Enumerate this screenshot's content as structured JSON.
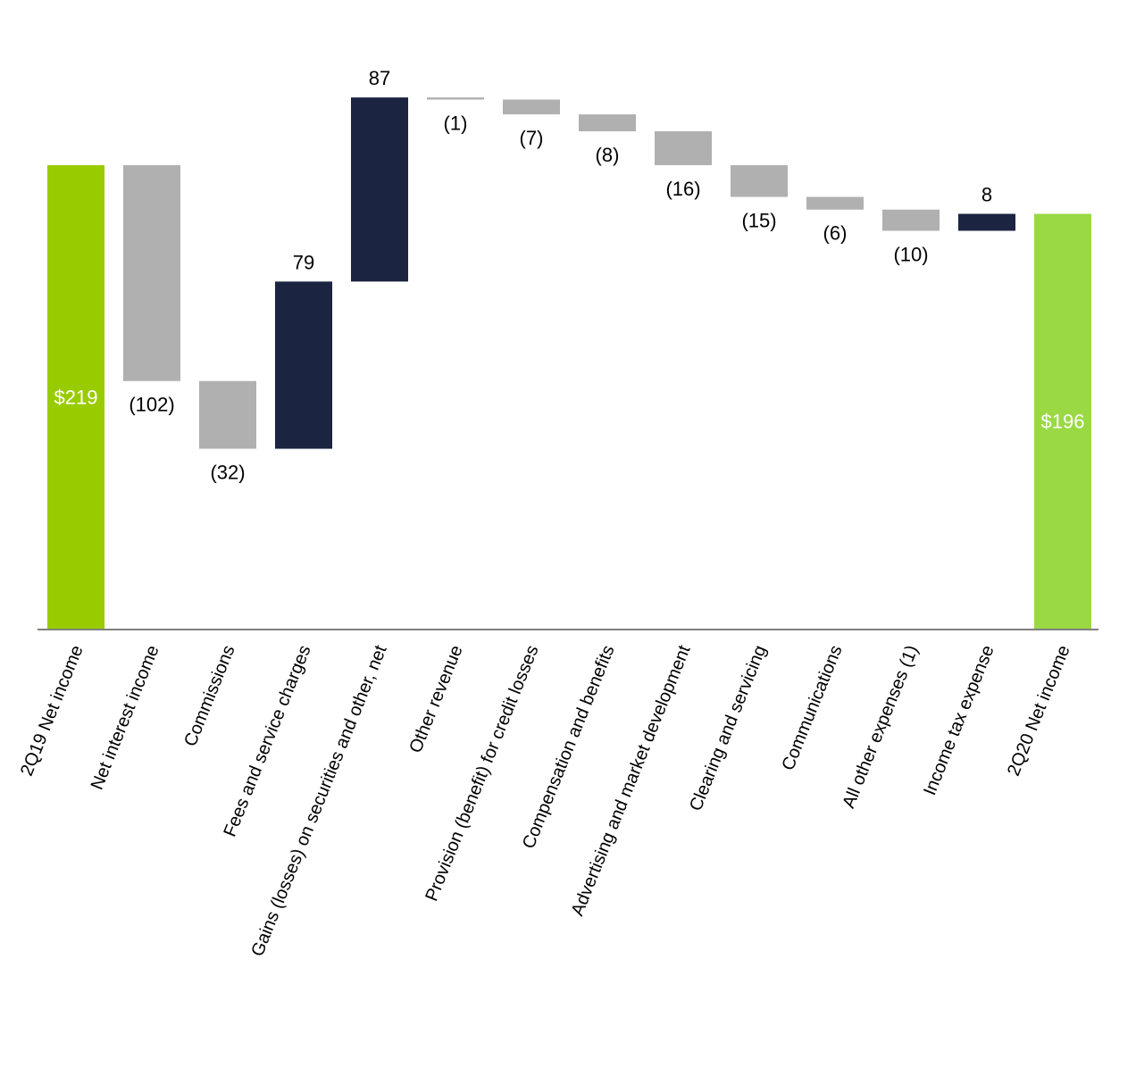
{
  "chart_data": {
    "type": "waterfall",
    "title": "",
    "xlabel": "",
    "ylabel": "",
    "ylim": [
      0,
      310
    ],
    "grid": false,
    "legend": "none",
    "categories": [
      "2Q19 Net income",
      "Net interest income",
      "Commissions",
      "Fees and service charges",
      "Gains (losses) on securities and other, net",
      "Other revenue",
      "Provision (benefit) for credit losses",
      "Compensation and benefits",
      "Advertising and market development",
      "Clearing and servicing",
      "Communications",
      "All other expenses (1)",
      "Income tax expense",
      "2Q20 Net income"
    ],
    "values": [
      219,
      -102,
      -32,
      79,
      87,
      -1,
      -7,
      -8,
      -16,
      -15,
      -6,
      -10,
      8,
      196
    ],
    "kinds": [
      "total",
      "delta",
      "delta",
      "delta",
      "delta",
      "delta",
      "delta",
      "delta",
      "delta",
      "delta",
      "delta",
      "delta",
      "delta",
      "total"
    ],
    "labels": [
      "$219",
      "(102)",
      "(32)",
      "79",
      "87",
      "(1)",
      "(7)",
      "(8)",
      "(16)",
      "(15)",
      "(6)",
      "(10)",
      "8",
      "$196"
    ],
    "colors": {
      "start_total": "#99cc00",
      "end_total": "#9ad943",
      "increase": "#1b2440",
      "decrease": "#b0b0b0",
      "axis": "#808080",
      "text": "#000000",
      "total_label": "#ffffff"
    }
  }
}
